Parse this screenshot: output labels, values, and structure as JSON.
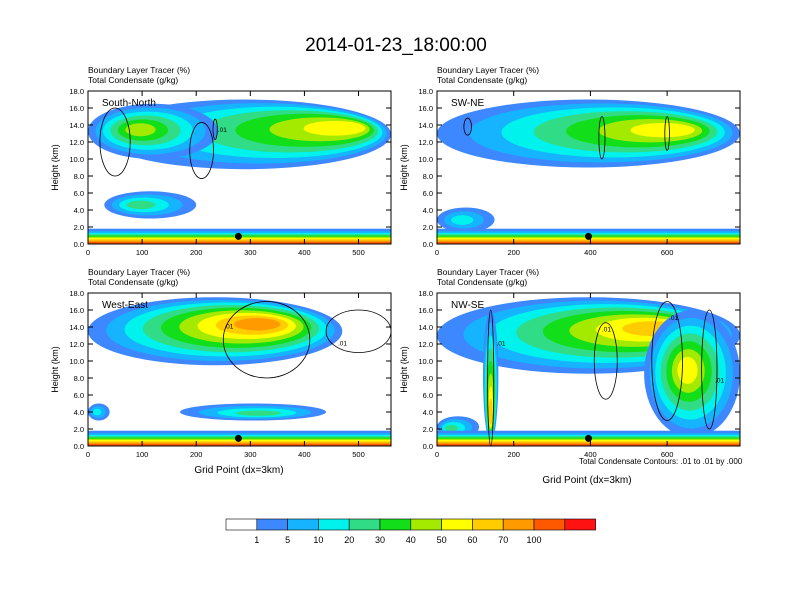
{
  "figure": {
    "title": "2014-01-23_18:00:00",
    "footer_note": "Total Condensate Contours: .01 to .01 by .000"
  },
  "chart_data": [
    {
      "type": "heatmap",
      "id": "p1",
      "variable_labels": [
        "Boundary Layer Tracer   (%)",
        "Total Condensate   (g/kg)"
      ],
      "panel_label": "South-North",
      "xlabel": "",
      "ylabel": "Height (km)",
      "xlim": [
        0,
        560
      ],
      "ylim": [
        0,
        18
      ],
      "xticks": [
        0,
        100,
        200,
        300,
        400,
        500
      ],
      "yticks": [
        "0.0",
        "2.0",
        "4.0",
        "6.0",
        "8.0",
        "10.0",
        "12.0",
        "14.0",
        "16.0",
        "18.0"
      ],
      "marker": {
        "x": 278,
        "y": 0.9
      },
      "tracer_layers": [
        {
          "x0": 20,
          "x1": 560,
          "bottom": 8.8,
          "top": 17.0,
          "peak": 55,
          "peak_x": 500,
          "peak_y": 13.8
        },
        {
          "x0": 0,
          "x1": 240,
          "bottom": 10.0,
          "top": 16.5,
          "peak": 45,
          "peak_x": 90,
          "peak_y": 13.5
        },
        {
          "x0": 30,
          "x1": 200,
          "bottom": 3.0,
          "top": 6.2,
          "peak": 25,
          "peak_x": 90,
          "peak_y": 4.6
        }
      ],
      "contours": [
        {
          "x": 50,
          "y": 12.0,
          "rx": 28,
          "ry": 4.0
        },
        {
          "x": 210,
          "y": 11.0,
          "rx": 22,
          "ry": 3.3
        },
        {
          "x": 235,
          "y": 13.5,
          "rx": 4,
          "ry": 1.2
        }
      ],
      "contour_labels": [
        {
          "x": 240,
          "y": 13.2,
          "text": ".01"
        }
      ]
    },
    {
      "type": "heatmap",
      "id": "p2",
      "variable_labels": [
        "Boundary Layer Tracer   (%)",
        "Total Condensate   (g/kg)"
      ],
      "panel_label": "SW-NE",
      "xlabel": "",
      "ylabel": "Height (km)",
      "xlim": [
        0,
        790
      ],
      "ylim": [
        0,
        18
      ],
      "xticks": [
        0,
        200,
        400,
        600
      ],
      "yticks": [
        "0.0",
        "2.0",
        "4.0",
        "6.0",
        "8.0",
        "10.0",
        "12.0",
        "14.0",
        "16.0",
        "18.0"
      ],
      "marker": {
        "x": 395,
        "y": 0.9
      },
      "tracer_layers": [
        {
          "x0": 0,
          "x1": 790,
          "bottom": 9.0,
          "top": 17.0,
          "peak": 52,
          "peak_x": 640,
          "peak_y": 13.5
        },
        {
          "x0": 0,
          "x1": 150,
          "bottom": 1.4,
          "top": 4.3,
          "peak": 18,
          "peak_x": 60,
          "peak_y": 2.8
        }
      ],
      "contours": [
        {
          "x": 80,
          "y": 13.8,
          "rx": 10,
          "ry": 1.0
        },
        {
          "x": 430,
          "y": 12.5,
          "rx": 8,
          "ry": 2.5
        },
        {
          "x": 600,
          "y": 13.0,
          "rx": 6,
          "ry": 2.0
        }
      ],
      "contour_labels": []
    },
    {
      "type": "heatmap",
      "id": "p3",
      "variable_labels": [
        "Boundary Layer Tracer   (%)",
        "Total Condensate   (g/kg)"
      ],
      "panel_label": "West-East",
      "xlabel": "Grid Point (dx=3km)",
      "ylabel": "Height (km)",
      "xlim": [
        0,
        560
      ],
      "ylim": [
        0,
        18
      ],
      "xticks": [
        0,
        100,
        200,
        300,
        400,
        500
      ],
      "yticks": [
        "0.0",
        "2.0",
        "4.0",
        "6.0",
        "8.0",
        "10.0",
        "12.0",
        "14.0",
        "16.0",
        "18.0"
      ],
      "marker": {
        "x": 278,
        "y": 0.9
      },
      "tracer_layers": [
        {
          "x0": 0,
          "x1": 470,
          "bottom": 9.5,
          "top": 17.5,
          "peak": 75,
          "peak_x": 330,
          "peak_y": 14.5
        },
        {
          "x0": 170,
          "x1": 440,
          "bottom": 3.0,
          "top": 5.0,
          "peak": 25,
          "peak_x": 320,
          "peak_y": 3.8
        },
        {
          "x0": 0,
          "x1": 40,
          "bottom": 3.0,
          "top": 5.0,
          "peak": 18,
          "peak_x": 15,
          "peak_y": 4.0
        }
      ],
      "contours": [
        {
          "x": 330,
          "y": 12.5,
          "rx": 80,
          "ry": 4.5
        },
        {
          "x": 500,
          "y": 13.5,
          "rx": 60,
          "ry": 2.5
        }
      ],
      "contour_labels": [
        {
          "x": 252,
          "y": 13.8,
          "text": ".01"
        },
        {
          "x": 462,
          "y": 11.8,
          "text": ".01"
        }
      ]
    },
    {
      "type": "heatmap",
      "id": "p4",
      "variable_labels": [
        "Boundary Layer Tracer   (%)",
        "Total Condensate   (g/kg)"
      ],
      "panel_label": "NW-SE",
      "xlabel": "Grid Point (dx=3km)",
      "ylabel": "Height (km)",
      "xlim": [
        0,
        790
      ],
      "ylim": [
        0,
        18
      ],
      "xticks": [
        0,
        200,
        400,
        600
      ],
      "yticks": [
        "0.0",
        "2.0",
        "4.0",
        "6.0",
        "8.0",
        "10.0",
        "12.0",
        "14.0",
        "16.0",
        "18.0"
      ],
      "marker": {
        "x": 395,
        "y": 0.9
      },
      "tracer_layers": [
        {
          "x0": 0,
          "x1": 790,
          "bottom": 8.5,
          "top": 17.5,
          "peak": 62,
          "peak_x": 600,
          "peak_y": 14.0
        },
        {
          "x0": 120,
          "x1": 160,
          "bottom": 0.5,
          "top": 16.0,
          "peak": 60,
          "peak_x": 140,
          "peak_y": 3.0
        },
        {
          "x0": 540,
          "x1": 790,
          "bottom": 1.0,
          "top": 16.0,
          "peak": 55,
          "peak_x": 650,
          "peak_y": 9.0
        },
        {
          "x0": 0,
          "x1": 110,
          "bottom": 1.0,
          "top": 3.5,
          "peak": 25,
          "peak_x": 30,
          "peak_y": 2.0
        }
      ],
      "contours": [
        {
          "x": 140,
          "y": 8.0,
          "rx": 8,
          "ry": 8.0
        },
        {
          "x": 600,
          "y": 10.0,
          "rx": 40,
          "ry": 7.0
        },
        {
          "x": 710,
          "y": 9.0,
          "rx": 20,
          "ry": 7.0
        },
        {
          "x": 440,
          "y": 10.0,
          "rx": 30,
          "ry": 4.5
        }
      ],
      "contour_labels": [
        {
          "x": 155,
          "y": 11.8,
          "text": ".01"
        },
        {
          "x": 430,
          "y": 13.5,
          "text": ".01"
        },
        {
          "x": 605,
          "y": 14.8,
          "text": ".01"
        },
        {
          "x": 725,
          "y": 7.5,
          "text": ".01"
        }
      ]
    }
  ],
  "colorbar": {
    "labels": [
      "1",
      "5",
      "10",
      "20",
      "30",
      "40",
      "50",
      "60",
      "70",
      "100"
    ],
    "colors": [
      "#ffffff",
      "#3d87ff",
      "#16b3ff",
      "#00f2ec",
      "#30dc86",
      "#12df19",
      "#a4ea00",
      "#ffff00",
      "#ffcc00",
      "#ff9a00",
      "#ff5900",
      "#ff1212"
    ]
  }
}
